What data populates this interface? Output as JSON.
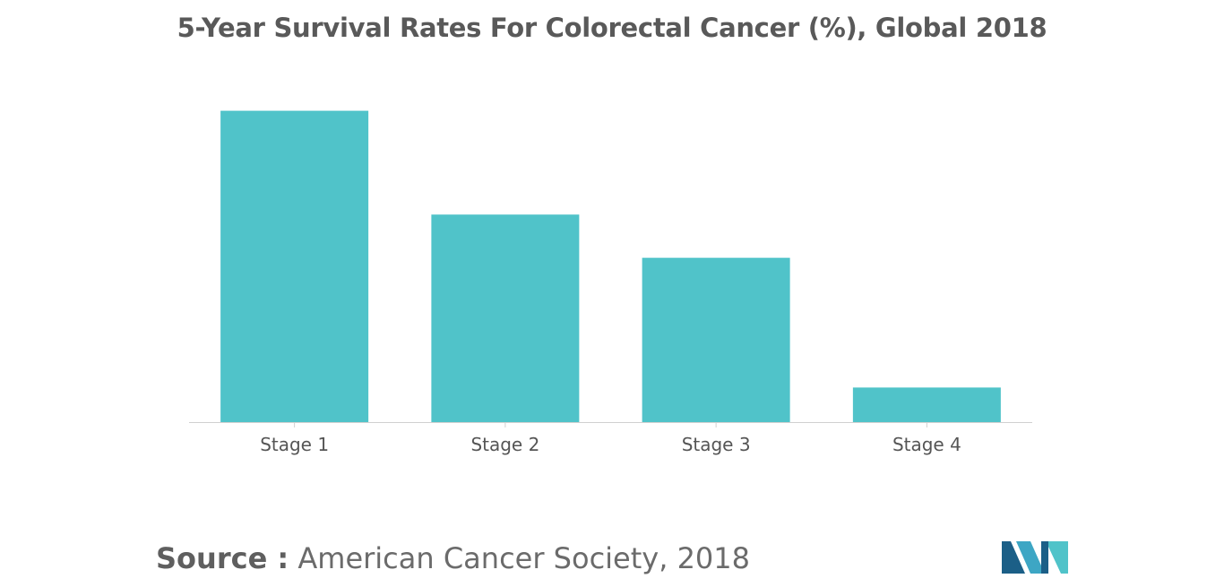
{
  "chart_data": {
    "type": "bar",
    "title": "5-Year Survival Rates For Colorectal Cancer (%), Global 2018",
    "categories": [
      "Stage 1",
      "Stage 2",
      "Stage 3",
      "Stage 4"
    ],
    "values": [
      90,
      60,
      47.5,
      10
    ],
    "xlabel": "",
    "ylabel": "",
    "ylim": [
      0,
      100
    ],
    "grid": false,
    "legend": "none",
    "bar_color": "#50c3c9",
    "axis_color": "#d0d0d0"
  },
  "source": {
    "label": "Source :",
    "text": "American Cancer Society, 2018"
  },
  "logo": {
    "colors": [
      "#1b5f87",
      "#3da6c4",
      "#50c3c9"
    ]
  }
}
